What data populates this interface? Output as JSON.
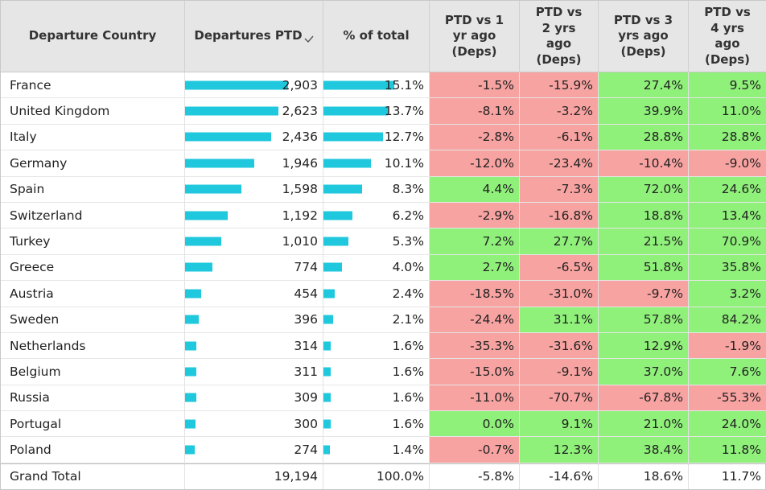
{
  "headers": {
    "country": "Departure Country",
    "departures": "Departures PTD",
    "pct_total": "% of total",
    "vs1": "PTD vs 1\nyr ago\n(Deps)",
    "vs2": "PTD vs\n2 yrs\nago\n(Deps)",
    "vs3": "PTD vs 3\nyrs ago\n(Deps)",
    "vs4": "PTD vs\n4 yrs\nago\n(Deps)"
  },
  "sort_icon": "sort-descending-icon",
  "colors": {
    "bar": "#1fc8dc",
    "negative": "#f7a3a1",
    "positive": "#8ff07a",
    "header": "#e6e6e6"
  },
  "rows": [
    {
      "country": "France",
      "departures": "2,903",
      "pct": "15.1%",
      "vs1": "-1.5%",
      "vs2": "-15.9%",
      "vs3": "27.4%",
      "vs4": "9.5%"
    },
    {
      "country": "United Kingdom",
      "departures": "2,623",
      "pct": "13.7%",
      "vs1": "-8.1%",
      "vs2": "-3.2%",
      "vs3": "39.9%",
      "vs4": "11.0%"
    },
    {
      "country": "Italy",
      "departures": "2,436",
      "pct": "12.7%",
      "vs1": "-2.8%",
      "vs2": "-6.1%",
      "vs3": "28.8%",
      "vs4": "28.8%"
    },
    {
      "country": "Germany",
      "departures": "1,946",
      "pct": "10.1%",
      "vs1": "-12.0%",
      "vs2": "-23.4%",
      "vs3": "-10.4%",
      "vs4": "-9.0%"
    },
    {
      "country": "Spain",
      "departures": "1,598",
      "pct": "8.3%",
      "vs1": "4.4%",
      "vs2": "-7.3%",
      "vs3": "72.0%",
      "vs4": "24.6%"
    },
    {
      "country": "Switzerland",
      "departures": "1,192",
      "pct": "6.2%",
      "vs1": "-2.9%",
      "vs2": "-16.8%",
      "vs3": "18.8%",
      "vs4": "13.4%"
    },
    {
      "country": "Turkey",
      "departures": "1,010",
      "pct": "5.3%",
      "vs1": "7.2%",
      "vs2": "27.7%",
      "vs3": "21.5%",
      "vs4": "70.9%"
    },
    {
      "country": "Greece",
      "departures": "774",
      "pct": "4.0%",
      "vs1": "2.7%",
      "vs2": "-6.5%",
      "vs3": "51.8%",
      "vs4": "35.8%"
    },
    {
      "country": "Austria",
      "departures": "454",
      "pct": "2.4%",
      "vs1": "-18.5%",
      "vs2": "-31.0%",
      "vs3": "-9.7%",
      "vs4": "3.2%"
    },
    {
      "country": "Sweden",
      "departures": "396",
      "pct": "2.1%",
      "vs1": "-24.4%",
      "vs2": "31.1%",
      "vs3": "57.8%",
      "vs4": "84.2%"
    },
    {
      "country": "Netherlands",
      "departures": "314",
      "pct": "1.6%",
      "vs1": "-35.3%",
      "vs2": "-31.6%",
      "vs3": "12.9%",
      "vs4": "-1.9%"
    },
    {
      "country": "Belgium",
      "departures": "311",
      "pct": "1.6%",
      "vs1": "-15.0%",
      "vs2": "-9.1%",
      "vs3": "37.0%",
      "vs4": "7.6%"
    },
    {
      "country": "Russia",
      "departures": "309",
      "pct": "1.6%",
      "vs1": "-11.0%",
      "vs2": "-70.7%",
      "vs3": "-67.8%",
      "vs4": "-55.3%"
    },
    {
      "country": "Portugal",
      "departures": "300",
      "pct": "1.6%",
      "vs1": "0.0%",
      "vs2": "9.1%",
      "vs3": "21.0%",
      "vs4": "24.0%"
    },
    {
      "country": "Poland",
      "departures": "274",
      "pct": "1.4%",
      "vs1": "-0.7%",
      "vs2": "12.3%",
      "vs3": "38.4%",
      "vs4": "11.8%"
    }
  ],
  "grand_total": {
    "label": "Grand Total",
    "departures": "19,194",
    "pct": "100.0%",
    "vs1": "-5.8%",
    "vs2": "-14.6%",
    "vs3": "18.6%",
    "vs4": "11.7%"
  }
}
